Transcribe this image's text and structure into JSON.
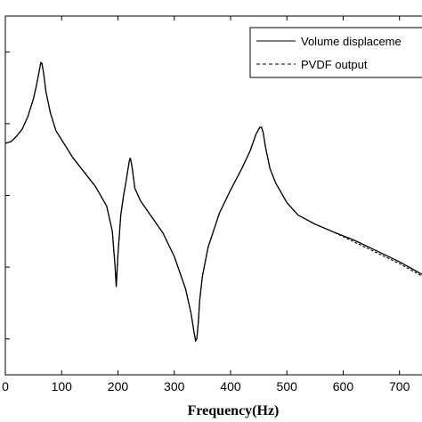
{
  "chart_data": {
    "type": "line",
    "title": "",
    "xlabel": "Frequency(Hz)",
    "ylabel": "",
    "xlim": [
      0,
      740
    ],
    "ylim": [
      0,
      1
    ],
    "x_ticks": [
      0,
      100,
      200,
      300,
      400,
      500,
      600,
      700
    ],
    "x_tick_labels": [
      "0",
      "100",
      "200",
      "300",
      "400",
      "500",
      "600",
      "700"
    ],
    "y_ticks": [
      0.1,
      0.3,
      0.5,
      0.7,
      0.9
    ],
    "y_tick_labels": [
      "",
      "",
      "",
      "",
      ""
    ],
    "grid": false,
    "legend_position": "top-right",
    "legend": [
      "Volume displaceme",
      "PVDF output"
    ],
    "series": [
      {
        "name": "Volume displaceme",
        "line_style": "solid",
        "color": "#000000",
        "x": [
          0,
          10,
          20,
          30,
          40,
          50,
          55,
          60,
          63,
          65,
          68,
          72,
          80,
          90,
          100,
          120,
          140,
          160,
          180,
          190,
          195,
          197,
          200,
          205,
          210,
          215,
          220,
          222,
          225,
          230,
          240,
          260,
          280,
          300,
          320,
          330,
          335,
          338,
          340,
          343,
          345,
          350,
          360,
          380,
          400,
          420,
          435,
          445,
          452,
          455,
          458,
          462,
          470,
          480,
          500,
          520,
          550,
          580,
          620,
          660,
          700,
          740
        ],
        "y": [
          0.645,
          0.65,
          0.665,
          0.685,
          0.72,
          0.77,
          0.805,
          0.845,
          0.87,
          0.868,
          0.84,
          0.79,
          0.73,
          0.68,
          0.655,
          0.605,
          0.565,
          0.525,
          0.47,
          0.4,
          0.3,
          0.245,
          0.335,
          0.445,
          0.5,
          0.545,
          0.595,
          0.605,
          0.58,
          0.52,
          0.485,
          0.44,
          0.395,
          0.33,
          0.24,
          0.17,
          0.12,
          0.095,
          0.1,
          0.15,
          0.205,
          0.275,
          0.355,
          0.45,
          0.515,
          0.575,
          0.625,
          0.67,
          0.69,
          0.69,
          0.675,
          0.635,
          0.575,
          0.535,
          0.48,
          0.445,
          0.42,
          0.4,
          0.375,
          0.345,
          0.315,
          0.28
        ]
      },
      {
        "name": "PVDF output",
        "line_style": "dashed",
        "color": "#000000",
        "x": [
          0,
          10,
          20,
          30,
          40,
          50,
          55,
          60,
          63,
          65,
          68,
          72,
          80,
          90,
          100,
          120,
          140,
          160,
          180,
          190,
          195,
          197,
          200,
          205,
          210,
          215,
          220,
          222,
          225,
          230,
          240,
          260,
          280,
          300,
          320,
          330,
          335,
          338,
          340,
          343,
          345,
          350,
          360,
          380,
          400,
          420,
          435,
          445,
          452,
          455,
          458,
          462,
          470,
          480,
          500,
          520,
          550,
          580,
          620,
          660,
          700,
          740
        ],
        "y": [
          0.645,
          0.65,
          0.665,
          0.685,
          0.72,
          0.77,
          0.805,
          0.845,
          0.872,
          0.868,
          0.84,
          0.79,
          0.73,
          0.68,
          0.655,
          0.605,
          0.565,
          0.525,
          0.47,
          0.4,
          0.3,
          0.245,
          0.335,
          0.445,
          0.5,
          0.545,
          0.595,
          0.605,
          0.58,
          0.52,
          0.485,
          0.44,
          0.395,
          0.33,
          0.24,
          0.17,
          0.12,
          0.095,
          0.1,
          0.15,
          0.205,
          0.275,
          0.355,
          0.45,
          0.515,
          0.575,
          0.625,
          0.67,
          0.69,
          0.69,
          0.675,
          0.635,
          0.575,
          0.535,
          0.48,
          0.445,
          0.42,
          0.4,
          0.37,
          0.34,
          0.31,
          0.275
        ]
      }
    ]
  }
}
